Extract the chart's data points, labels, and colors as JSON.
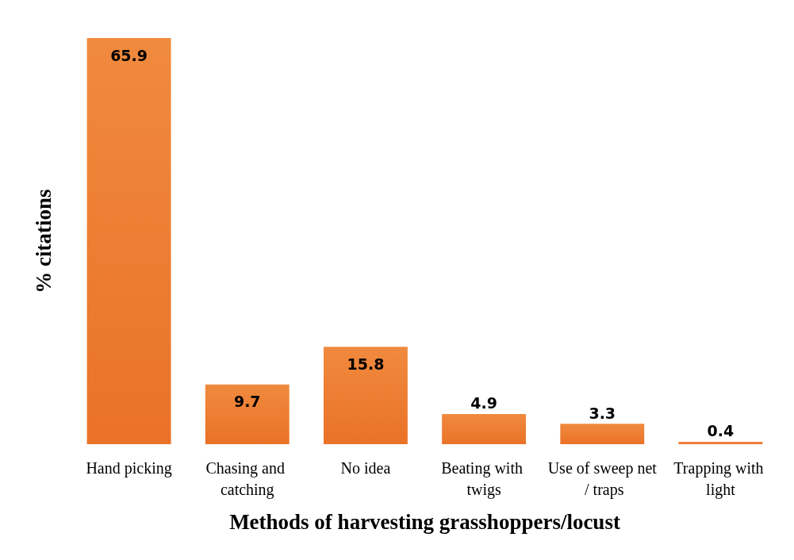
{
  "chart_data": {
    "type": "bar",
    "xlabel": "Methods of harvesting grasshoppers/locust",
    "ylabel": "% citations",
    "categories": [
      "Hand picking",
      "Chasing and catching",
      "No idea",
      "Beating with twigs",
      "Use of sweep net / traps",
      "Trapping with light"
    ],
    "values": [
      65.9,
      9.7,
      15.8,
      4.9,
      3.3,
      0.4
    ],
    "color": "#ea7228",
    "data_labels": true
  }
}
